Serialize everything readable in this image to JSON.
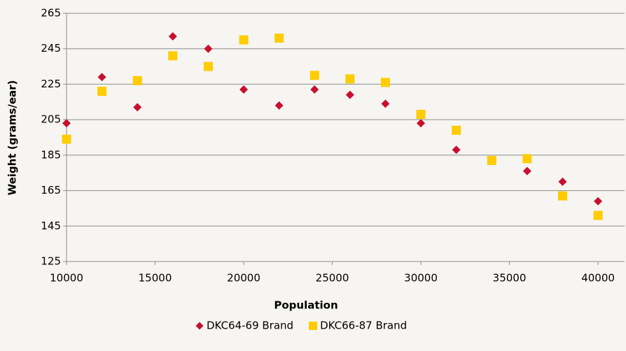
{
  "chart_data": {
    "type": "scatter",
    "x_label": "Population",
    "y_label": "Weight (grams/ear)",
    "x": [
      10000,
      12000,
      14000,
      16000,
      18000,
      20000,
      22000,
      24000,
      26000,
      28000,
      30000,
      32000,
      34000,
      36000,
      38000,
      40000
    ],
    "series": [
      {
        "name": "DKC64-69 Brand",
        "color": "#c8102e",
        "marker": "diamond",
        "values": [
          203,
          229,
          212,
          252,
          245,
          222,
          213,
          222,
          219,
          214,
          203,
          188,
          182,
          176,
          170,
          159
        ]
      },
      {
        "name": "DKC66-87 Brand",
        "color": "#ffcc00",
        "marker": "square",
        "values": [
          194,
          221,
          227,
          241,
          235,
          250,
          251,
          230,
          228,
          226,
          208,
          199,
          182,
          183,
          162,
          151
        ]
      }
    ],
    "xlim": [
      10000,
      41500
    ],
    "xticks": [
      10000,
      15000,
      20000,
      25000,
      30000,
      35000,
      40000
    ],
    "ylim": [
      125,
      265
    ],
    "yticks": [
      125,
      145,
      165,
      185,
      205,
      225,
      245,
      265
    ],
    "grid": true,
    "legend": "bottom"
  }
}
